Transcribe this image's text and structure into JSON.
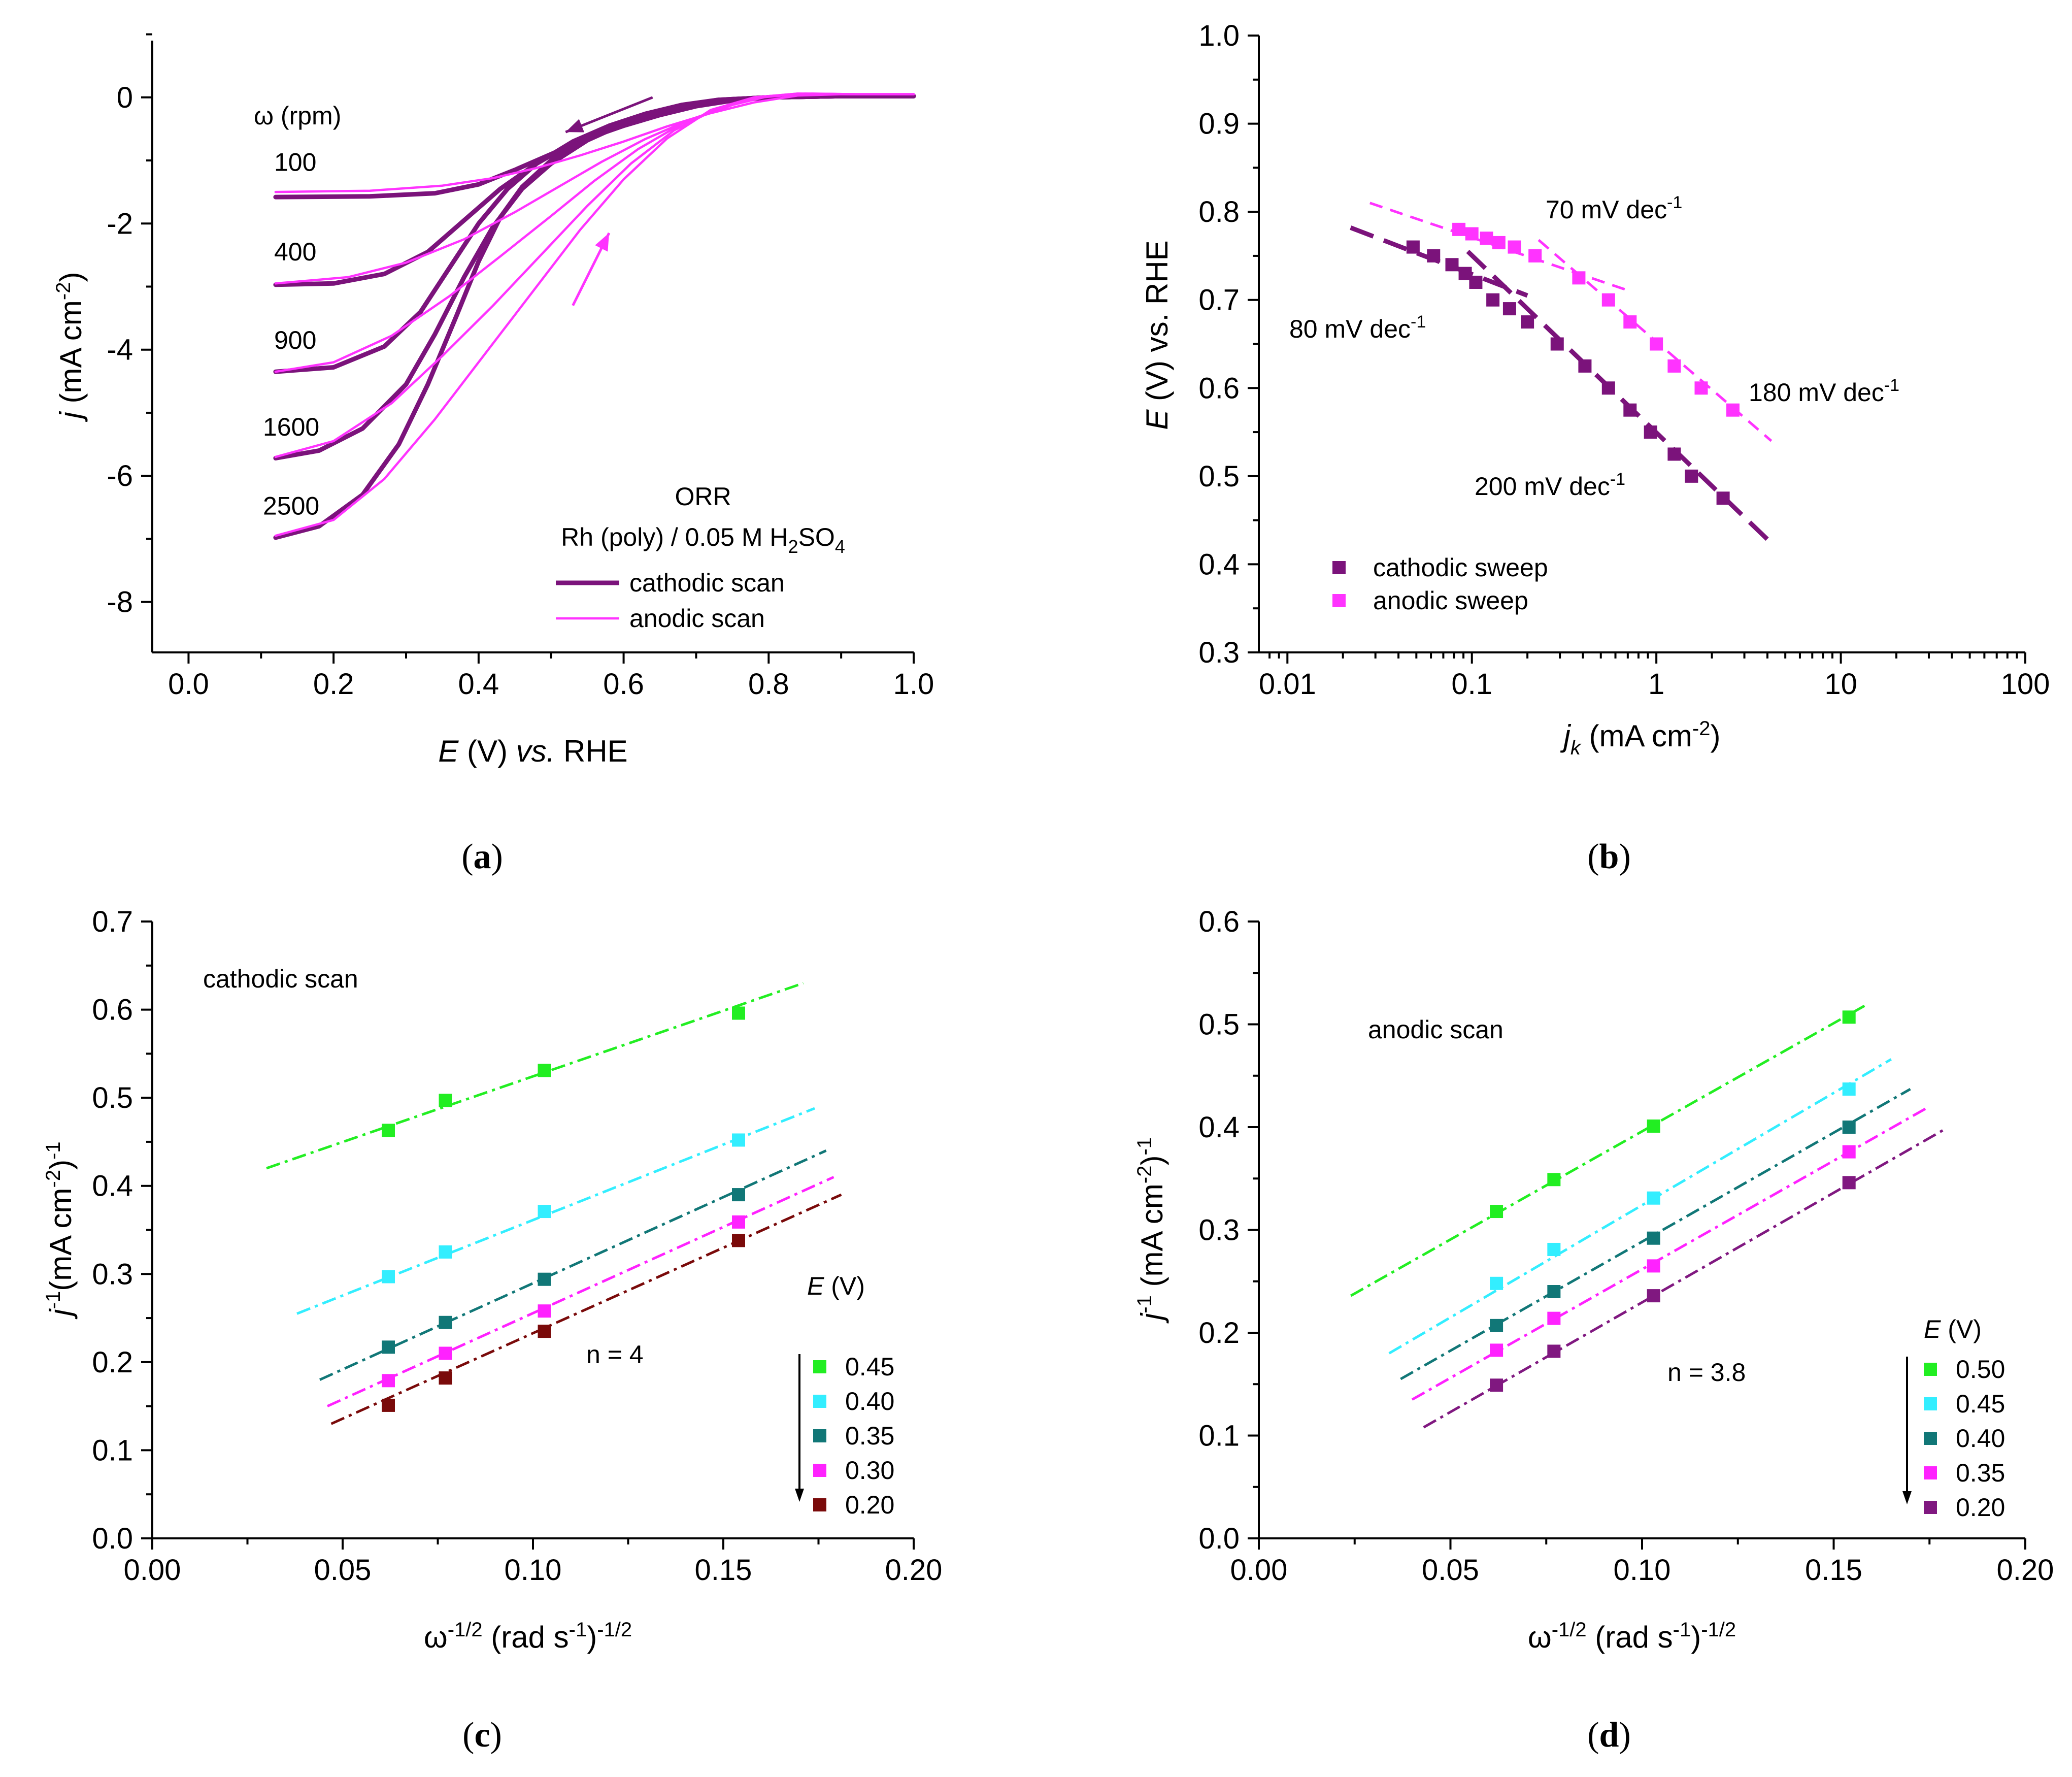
{
  "colors": {
    "cathodic": "#7B137B",
    "anodic": "#FF33FF",
    "green": "#22EE22",
    "cyan": "#33EEFF",
    "teal": "#117777",
    "magenta": "#FF22FF",
    "maroon": "#7A0A0A",
    "purple": "#801880"
  },
  "chart_data": [
    {
      "panel": "a",
      "type": "line",
      "caption": "a",
      "xlabel": {
        "italic": "E",
        "rest": " (V) ",
        "italic2": "vs.",
        "rest2": " RHE"
      },
      "ylabel": {
        "italic": "j",
        "rest": " (mA cm",
        "sup": "-2",
        "close": ")"
      },
      "xlim": [
        -0.05,
        1.0
      ],
      "ylim": [
        -8.8,
        0.9
      ],
      "xticks": [
        "0.0",
        "0.2",
        "0.4",
        "0.6",
        "0.8",
        "1.0"
      ],
      "xtick_values": [
        0.0,
        0.2,
        0.4,
        0.6,
        0.8,
        1.0
      ],
      "yticks": [
        "0",
        "-2",
        "-4",
        "-6",
        "-8"
      ],
      "ytick_values": [
        0,
        -2,
        -4,
        -6,
        -8
      ],
      "omega_header": "ω (rpm)",
      "rpm_labels": [
        "100",
        "400",
        "900",
        "1600",
        "2500"
      ],
      "title_line1": "ORR",
      "title_line2": {
        "text": "Rh (poly) / 0.05 M H",
        "sub1": "2",
        "mid": "SO",
        "sub2": "4"
      },
      "legend": [
        "cathodic scan",
        "anodic scan"
      ],
      "series": [
        {
          "name": "cathodic scan",
          "rpm": "100",
          "x": [
            0.12,
            0.25,
            0.34,
            0.4,
            0.45,
            0.5,
            0.55,
            0.6,
            0.65,
            0.7,
            0.75,
            0.8,
            0.9,
            1.0
          ],
          "y": [
            -1.58,
            -1.57,
            -1.52,
            -1.38,
            -1.15,
            -0.9,
            -0.65,
            -0.45,
            -0.28,
            -0.14,
            -0.05,
            0.0,
            0.02,
            0.02
          ]
        },
        {
          "name": "cathodic scan",
          "rpm": "400",
          "x": [
            0.12,
            0.2,
            0.27,
            0.33,
            0.38,
            0.43,
            0.48,
            0.53,
            0.58,
            0.63,
            0.68,
            0.73,
            0.8,
            0.9,
            1.0
          ],
          "y": [
            -2.97,
            -2.95,
            -2.8,
            -2.45,
            -1.95,
            -1.45,
            -1.05,
            -0.72,
            -0.46,
            -0.27,
            -0.13,
            -0.04,
            0.0,
            0.02,
            0.02
          ]
        },
        {
          "name": "cathodic scan",
          "rpm": "900",
          "x": [
            0.12,
            0.2,
            0.27,
            0.32,
            0.36,
            0.4,
            0.44,
            0.48,
            0.53,
            0.58,
            0.63,
            0.68,
            0.73,
            0.8,
            0.9,
            1.0
          ],
          "y": [
            -4.35,
            -4.28,
            -3.95,
            -3.4,
            -2.7,
            -2.0,
            -1.45,
            -1.05,
            -0.7,
            -0.45,
            -0.26,
            -0.12,
            -0.04,
            0.0,
            0.02,
            0.02
          ]
        },
        {
          "name": "cathodic scan",
          "rpm": "1600",
          "x": [
            0.12,
            0.18,
            0.24,
            0.3,
            0.34,
            0.38,
            0.42,
            0.46,
            0.5,
            0.55,
            0.6,
            0.65,
            0.7,
            0.75,
            0.8,
            0.9,
            1.0
          ],
          "y": [
            -5.72,
            -5.6,
            -5.25,
            -4.55,
            -3.75,
            -2.85,
            -2.05,
            -1.45,
            -1.05,
            -0.68,
            -0.42,
            -0.23,
            -0.1,
            -0.03,
            0.0,
            0.02,
            0.02
          ]
        },
        {
          "name": "cathodic scan",
          "rpm": "2500",
          "x": [
            0.12,
            0.18,
            0.24,
            0.29,
            0.33,
            0.37,
            0.4,
            0.43,
            0.46,
            0.5,
            0.55,
            0.6,
            0.65,
            0.7,
            0.75,
            0.8,
            0.9,
            1.0
          ],
          "y": [
            -6.98,
            -6.8,
            -6.3,
            -5.5,
            -4.55,
            -3.45,
            -2.6,
            -1.9,
            -1.42,
            -1.0,
            -0.64,
            -0.4,
            -0.22,
            -0.1,
            -0.03,
            0.0,
            0.02,
            0.02
          ]
        },
        {
          "name": "anodic scan",
          "rpm": "100",
          "x": [
            0.12,
            0.25,
            0.35,
            0.42,
            0.48,
            0.54,
            0.6,
            0.66,
            0.72,
            0.78,
            0.84,
            0.9,
            1.0
          ],
          "y": [
            -1.5,
            -1.48,
            -1.4,
            -1.28,
            -1.12,
            -0.92,
            -0.7,
            -0.46,
            -0.25,
            -0.08,
            0.03,
            0.05,
            0.05
          ]
        },
        {
          "name": "anodic scan",
          "rpm": "400",
          "x": [
            0.12,
            0.22,
            0.3,
            0.38,
            0.45,
            0.51,
            0.57,
            0.63,
            0.69,
            0.75,
            0.8,
            0.86,
            0.92,
            1.0
          ],
          "y": [
            -2.95,
            -2.85,
            -2.62,
            -2.25,
            -1.82,
            -1.42,
            -1.02,
            -0.66,
            -0.36,
            -0.12,
            0.02,
            0.06,
            0.05,
            0.05
          ]
        },
        {
          "name": "anodic scan",
          "rpm": "900",
          "x": [
            0.12,
            0.2,
            0.28,
            0.36,
            0.43,
            0.5,
            0.56,
            0.62,
            0.68,
            0.74,
            0.79,
            0.85,
            0.92,
            1.0
          ],
          "y": [
            -4.35,
            -4.2,
            -3.78,
            -3.15,
            -2.52,
            -1.88,
            -1.32,
            -0.82,
            -0.42,
            -0.14,
            0.0,
            0.06,
            0.05,
            0.05
          ]
        },
        {
          "name": "anodic scan",
          "rpm": "1600",
          "x": [
            0.12,
            0.2,
            0.28,
            0.35,
            0.42,
            0.49,
            0.55,
            0.61,
            0.67,
            0.73,
            0.78,
            0.84,
            0.92,
            1.0
          ],
          "y": [
            -5.7,
            -5.45,
            -4.85,
            -4.1,
            -3.3,
            -2.45,
            -1.72,
            -1.05,
            -0.52,
            -0.17,
            0.0,
            0.06,
            0.05,
            0.05
          ]
        },
        {
          "name": "anodic scan",
          "rpm": "2500",
          "x": [
            0.12,
            0.2,
            0.27,
            0.34,
            0.41,
            0.48,
            0.54,
            0.6,
            0.66,
            0.72,
            0.78,
            0.84,
            0.92,
            1.0
          ],
          "y": [
            -6.95,
            -6.7,
            -6.05,
            -5.1,
            -4.05,
            -3.0,
            -2.1,
            -1.3,
            -0.65,
            -0.2,
            0.0,
            0.06,
            0.05,
            0.05
          ]
        }
      ],
      "arrows": [
        {
          "color": "cathodic",
          "from": [
            0.64,
            0.0
          ],
          "to": [
            0.52,
            -0.55
          ]
        },
        {
          "color": "anodic",
          "from": [
            0.53,
            -3.3
          ],
          "to": [
            0.58,
            -2.15
          ]
        }
      ]
    },
    {
      "panel": "b",
      "type": "scatter",
      "caption": "b",
      "xlabel": {
        "italic": "j",
        "sub": "k",
        "rest": " (mA cm",
        "sup": "-2",
        "close": ")"
      },
      "ylabel": {
        "italic": "E",
        "rest": " (V) vs. RHE"
      },
      "xscale": "log",
      "xlim": [
        0.007,
        100
      ],
      "ylim": [
        0.3,
        1.0
      ],
      "xticks": [
        "0.01",
        "0.1",
        "1",
        "10",
        "100"
      ],
      "xtick_values": [
        0.01,
        0.1,
        1,
        10,
        100
      ],
      "yticks": [
        "0.3",
        "0.4",
        "0.5",
        "0.6",
        "0.7",
        "0.8",
        "0.9",
        "1.0"
      ],
      "ytick_values": [
        0.3,
        0.4,
        0.5,
        0.6,
        0.7,
        0.8,
        0.9,
        1.0
      ],
      "legend": [
        "cathodic sweep",
        "anodic sweep"
      ],
      "series": [
        {
          "name": "cathodic sweep",
          "color": "cathodic",
          "x": [
            0.048,
            0.062,
            0.078,
            0.092,
            0.105,
            0.13,
            0.16,
            0.2,
            0.29,
            0.41,
            0.55,
            0.72,
            0.93,
            1.25,
            1.55,
            2.3
          ],
          "y": [
            0.76,
            0.75,
            0.74,
            0.73,
            0.72,
            0.7,
            0.69,
            0.675,
            0.65,
            0.625,
            0.6,
            0.575,
            0.55,
            0.525,
            0.5,
            0.475
          ]
        },
        {
          "name": "anodic sweep",
          "color": "anodic",
          "x": [
            0.085,
            0.1,
            0.12,
            0.14,
            0.17,
            0.22,
            0.38,
            0.55,
            0.72,
            1.0,
            1.25,
            1.75,
            2.6
          ],
          "y": [
            0.78,
            0.775,
            0.77,
            0.765,
            0.76,
            0.75,
            0.725,
            0.7,
            0.675,
            0.65,
            0.625,
            0.6,
            0.575
          ]
        }
      ],
      "fits": [
        {
          "color": "cathodic",
          "dash": "long",
          "x": [
            0.022,
            0.2
          ],
          "y": [
            0.782,
            0.705
          ]
        },
        {
          "color": "cathodic",
          "dash": "long",
          "x": [
            0.095,
            4.4
          ],
          "y": [
            0.755,
            0.42
          ]
        },
        {
          "color": "anodic",
          "dash": "short",
          "x": [
            0.028,
            0.72
          ],
          "y": [
            0.81,
            0.71
          ]
        },
        {
          "color": "anodic",
          "dash": "short",
          "x": [
            0.23,
            4.2
          ],
          "y": [
            0.768,
            0.54
          ]
        }
      ],
      "annotations": [
        {
          "base": "70 mV dec",
          "sup": "-1"
        },
        {
          "base": "80 mV dec",
          "sup": "-1"
        },
        {
          "base": "180 mV dec",
          "sup": "-1"
        },
        {
          "base": "200 mV dec",
          "sup": "-1"
        }
      ]
    },
    {
      "panel": "c",
      "type": "scatter",
      "caption": "c",
      "xlabel": {
        "base": "ω",
        "sup": "-1/2",
        "rest": " (rad s",
        "sup2": "-1",
        "close": ")",
        "sup3": "-1/2"
      },
      "ylabel": {
        "base": "j",
        "sup": "-1",
        "rest": "(mA cm",
        "sup2": "-2",
        "close": ")",
        "sup3": "-1"
      },
      "xlim": [
        0.0,
        0.2
      ],
      "ylim": [
        0.0,
        0.7
      ],
      "xticks": [
        "0.00",
        "0.05",
        "0.10",
        "0.15",
        "0.20"
      ],
      "xtick_values": [
        0.0,
        0.05,
        0.1,
        0.15,
        0.2
      ],
      "yticks": [
        "0.0",
        "0.1",
        "0.2",
        "0.3",
        "0.4",
        "0.5",
        "0.6",
        "0.7"
      ],
      "ytick_values": [
        0.0,
        0.1,
        0.2,
        0.3,
        0.4,
        0.5,
        0.6,
        0.7
      ],
      "scan_label": "cathodic scan",
      "n_label": "n = 4",
      "legend_title": {
        "italic": "E",
        "rest": " (V)"
      },
      "x": [
        0.062,
        0.077,
        0.103,
        0.154
      ],
      "series": [
        {
          "name": "0.45",
          "color": "green",
          "y": [
            0.463,
            0.497,
            0.531,
            0.596
          ],
          "fit_x": [
            0.03,
            0.171
          ],
          "fit_y": [
            0.42,
            0.63
          ]
        },
        {
          "name": "0.40",
          "color": "cyan",
          "y": [
            0.297,
            0.325,
            0.371,
            0.452
          ],
          "fit_x": [
            0.038,
            0.174
          ],
          "fit_y": [
            0.255,
            0.488
          ]
        },
        {
          "name": "0.35",
          "color": "teal",
          "y": [
            0.217,
            0.245,
            0.294,
            0.39
          ],
          "fit_x": [
            0.044,
            0.177
          ],
          "fit_y": [
            0.18,
            0.44
          ]
        },
        {
          "name": "0.30",
          "color": "magenta",
          "y": [
            0.179,
            0.21,
            0.258,
            0.359
          ],
          "fit_x": [
            0.046,
            0.179
          ],
          "fit_y": [
            0.15,
            0.41
          ]
        },
        {
          "name": "0.20",
          "color": "maroon",
          "y": [
            0.151,
            0.182,
            0.235,
            0.338
          ],
          "fit_x": [
            0.047,
            0.181
          ],
          "fit_y": [
            0.13,
            0.39
          ]
        }
      ]
    },
    {
      "panel": "d",
      "type": "scatter",
      "caption": "d",
      "xlabel": {
        "base": "ω",
        "sup": "-1/2",
        "rest": " (rad s",
        "sup2": "-1",
        "close": ")",
        "sup3": "-1/2"
      },
      "ylabel": {
        "base": "j",
        "sup": "-1",
        "rest": " (mA cm",
        "sup2": "-2",
        "close": ")",
        "sup3": "-1"
      },
      "xlim": [
        0.0,
        0.2
      ],
      "ylim": [
        0.0,
        0.6
      ],
      "xticks": [
        "0.00",
        "0.05",
        "0.10",
        "0.15",
        "0.20"
      ],
      "xtick_values": [
        0.0,
        0.05,
        0.1,
        0.15,
        0.2
      ],
      "yticks": [
        "0.0",
        "0.1",
        "0.2",
        "0.3",
        "0.4",
        "0.5",
        "0.6"
      ],
      "ytick_values": [
        0.0,
        0.1,
        0.2,
        0.3,
        0.4,
        0.5,
        0.6
      ],
      "scan_label": "anodic scan",
      "n_label": "n = 3.8",
      "legend_title": {
        "italic": "E",
        "rest": " (V)"
      },
      "x": [
        0.062,
        0.077,
        0.103,
        0.154
      ],
      "series": [
        {
          "name": "0.50",
          "color": "green",
          "y": [
            0.318,
            0.349,
            0.401,
            0.507
          ],
          "fit_x": [
            0.024,
            0.159
          ],
          "fit_y": [
            0.236,
            0.52
          ]
        },
        {
          "name": "0.45",
          "color": "cyan",
          "y": [
            0.248,
            0.281,
            0.331,
            0.437
          ],
          "fit_x": [
            0.034,
            0.165
          ],
          "fit_y": [
            0.18,
            0.466
          ]
        },
        {
          "name": "0.40",
          "color": "teal",
          "y": [
            0.207,
            0.24,
            0.292,
            0.4
          ],
          "fit_x": [
            0.037,
            0.17
          ],
          "fit_y": [
            0.155,
            0.437
          ]
        },
        {
          "name": "0.35",
          "color": "magenta",
          "y": [
            0.183,
            0.214,
            0.265,
            0.376
          ],
          "fit_x": [
            0.04,
            0.174
          ],
          "fit_y": [
            0.135,
            0.418
          ]
        },
        {
          "name": "0.20",
          "color": "purple",
          "y": [
            0.149,
            0.182,
            0.236,
            0.346
          ],
          "fit_x": [
            0.043,
            0.179
          ],
          "fit_y": [
            0.108,
            0.398
          ]
        }
      ]
    }
  ]
}
